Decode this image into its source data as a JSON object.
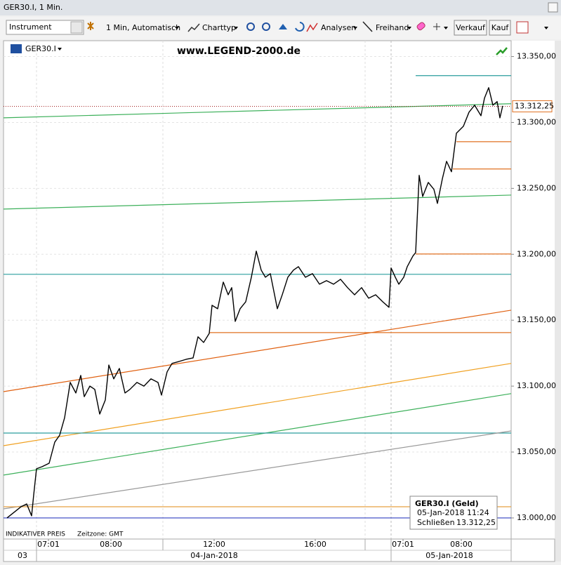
{
  "window_title": "GER30.I, 1 Min.",
  "toolbar": {
    "instrument": "Instrument",
    "interval": "1 Min,  Automatisch",
    "charttype": "Charttyp",
    "analysen": "Analysen",
    "freihand": "Freihand",
    "sell": "Verkauf",
    "buy": "Kauf"
  },
  "chart_data": {
    "type": "line",
    "symbol": "GER30.I",
    "title": "www.LEGEND-2000.de",
    "footnote": "INDIKATIVER PREIS",
    "timezone": "Zeitzone: GMT",
    "xlim": [
      0,
      723
    ],
    "ylim": [
      12984,
      13362
    ],
    "yticks": [
      {
        "value": 13000,
        "label": "13.000,00"
      },
      {
        "value": 13050,
        "label": "13.050,00"
      },
      {
        "value": 13100,
        "label": "13.100,00"
      },
      {
        "value": 13150,
        "label": "13.150,00"
      },
      {
        "value": 13200,
        "label": "13.200,00"
      },
      {
        "value": 13250,
        "label": "13.250,00"
      },
      {
        "value": 13300,
        "label": "13.300,00"
      },
      {
        "value": 13350,
        "label": "13.350,00"
      }
    ],
    "xticks": [
      {
        "value": 64,
        "label": "07:01"
      },
      {
        "value": 153,
        "label": "08:00"
      },
      {
        "value": 300,
        "label": "12:00"
      },
      {
        "value": 444,
        "label": "16:00"
      },
      {
        "value": 569,
        "label": "07:01"
      },
      {
        "value": 652,
        "label": "08:00"
      }
    ],
    "date_ticks": [
      {
        "value": 27,
        "label": "03"
      },
      {
        "value": 300,
        "label": "04-Jan-2018"
      },
      {
        "value": 635,
        "label": "05-Jan-2018"
      }
    ],
    "grid": true,
    "series": [
      {
        "color": "#000000",
        "x": [
          5,
          25,
          33,
          40,
          43,
          47,
          55,
          65,
          73,
          80,
          87,
          95,
          103,
          110,
          115,
          123,
          130,
          137,
          145,
          150,
          157,
          165,
          173,
          180,
          190,
          200,
          210,
          220,
          225,
          233,
          240,
          250,
          260,
          270,
          277,
          285,
          293,
          297,
          305,
          313,
          320,
          325,
          330,
          337,
          345,
          353,
          360,
          367,
          373,
          380,
          390,
          397,
          405,
          413,
          420,
          430,
          440,
          450,
          460,
          470,
          480,
          490,
          500,
          510,
          520,
          530,
          540,
          549,
          552,
          558,
          563,
          570,
          575,
          583,
          587,
          592,
          597,
          605,
          613,
          618,
          625,
          631,
          638,
          645,
          655,
          663,
          671,
          680,
          685,
          691,
          697,
          703,
          707,
          711
        ],
        "values": [
          13000,
          13008.5,
          13010.6,
          13001.6,
          13017.6,
          13037.3,
          13038.9,
          13041.5,
          13057.5,
          13062.8,
          13076,
          13102.8,
          13094.8,
          13108.1,
          13092,
          13100,
          13097.5,
          13078.8,
          13089.5,
          13116,
          13105.5,
          13113.4,
          13094.8,
          13097.5,
          13102.8,
          13100,
          13105.5,
          13102.8,
          13093.2,
          13110.8,
          13117.2,
          13118.7,
          13120.3,
          13121.4,
          13137.4,
          13133.1,
          13140,
          13161.3,
          13158.7,
          13178.9,
          13169.3,
          13174.7,
          13149.1,
          13158.7,
          13164,
          13182.6,
          13202.4,
          13188,
          13182.6,
          13185.3,
          13158.7,
          13169.3,
          13182.6,
          13188,
          13190.6,
          13182.6,
          13185.3,
          13177.3,
          13180,
          13177.3,
          13181,
          13174.7,
          13169.3,
          13174.7,
          13166.7,
          13169.3,
          13164,
          13159.8,
          13189.6,
          13182.6,
          13177.3,
          13182.6,
          13190.6,
          13198.6,
          13201.3,
          13259.9,
          13243.9,
          13254.5,
          13249.2,
          13238.6,
          13257.2,
          13270.5,
          13262.6,
          13291.8,
          13297.1,
          13307.8,
          13313.1,
          13305.1,
          13318.4,
          13326.4,
          13313.1,
          13315.8,
          13303.5,
          13312.6
        ]
      }
    ],
    "lines": [
      {
        "x": [
          587,
          723
        ],
        "values": [
          13335.5,
          13335.5
        ],
        "color": "#2a9d9d"
      },
      {
        "x": [
          0,
          723
        ],
        "values": [
          13303.5,
          13314.2
        ],
        "color": "#3cb05a"
      },
      {
        "x": [
          645,
          723
        ],
        "values": [
          13285.4,
          13285.4
        ],
        "color": "#e07020"
      },
      {
        "x": [
          640,
          723
        ],
        "values": [
          13264.7,
          13264.7
        ],
        "color": "#e07020"
      },
      {
        "x": [
          0,
          723
        ],
        "values": [
          13234.3,
          13244.9
        ],
        "color": "#3cb05a"
      },
      {
        "x": [
          587,
          723
        ],
        "values": [
          13200.2,
          13200.2
        ],
        "color": "#e07020"
      },
      {
        "x": [
          0,
          723
        ],
        "values": [
          13184.8,
          13184.8
        ],
        "color": "#2a9d9d"
      },
      {
        "x": [
          0,
          723
        ],
        "values": [
          13095.8,
          13157.6
        ],
        "color": "#e06010"
      },
      {
        "x": [
          293,
          723
        ],
        "values": [
          13140.6,
          13140.6
        ],
        "color": "#e07020"
      },
      {
        "x": [
          0,
          723
        ],
        "values": [
          13054.8,
          13117.2
        ],
        "color": "#f0a020"
      },
      {
        "x": [
          0,
          723
        ],
        "values": [
          13032.5,
          13094.3
        ],
        "color": "#3cb05a"
      },
      {
        "x": [
          0,
          723
        ],
        "values": [
          13064.4,
          13064.4
        ],
        "color": "#2a9d9d"
      },
      {
        "x": [
          0,
          723
        ],
        "values": [
          13006.9,
          13066
        ],
        "color": "#999999"
      },
      {
        "x": [
          0,
          723
        ],
        "values": [
          13008.5,
          13008.5
        ],
        "color": "#e8a040"
      },
      {
        "x": [
          0,
          723
        ],
        "values": [
          13000,
          13000
        ],
        "color": "#3040c0"
      }
    ],
    "last_value": 13312.25,
    "last_label": "13.312,25",
    "info": {
      "title": "GER30.I (Geld)",
      "time": "05-Jan-2018 11:24",
      "close_label": "Schließen",
      "close_value": "13.312,25"
    }
  }
}
